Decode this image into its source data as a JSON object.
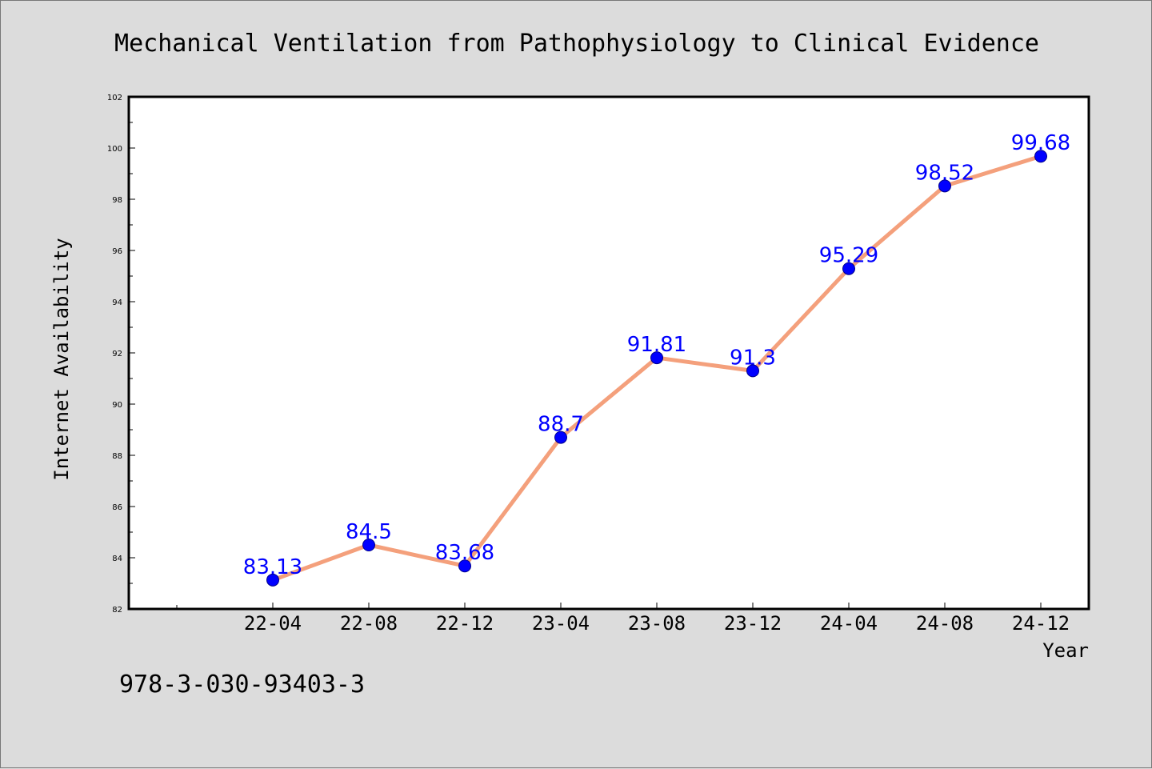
{
  "chart_data": {
    "type": "line",
    "title": "Mechanical Ventilation from Pathophysiology to Clinical Evidence",
    "xlabel": "Year",
    "ylabel": "Internet Availability",
    "categories": [
      "22-04",
      "22-08",
      "22-12",
      "23-04",
      "23-08",
      "23-12",
      "24-04",
      "24-08",
      "24-12"
    ],
    "series": [
      {
        "values": [
          83.13,
          84.5,
          83.68,
          88.7,
          91.81,
          91.3,
          95.29,
          98.52,
          99.68
        ],
        "labels": [
          "83.13",
          "84.5",
          "83.68",
          "88.7",
          "91.81",
          "91.3",
          "95.29",
          "98.52",
          "99.68"
        ],
        "line_color": "#f4a07c",
        "marker_color": "#0000ff"
      }
    ],
    "ylim": [
      82,
      102
    ],
    "yticks": [
      "82",
      "84",
      "86",
      "88",
      "90",
      "92",
      "94",
      "96",
      "98",
      "100",
      "102"
    ],
    "grid": false,
    "legend": "none"
  },
  "footer_text": "978-3-030-93403-3"
}
